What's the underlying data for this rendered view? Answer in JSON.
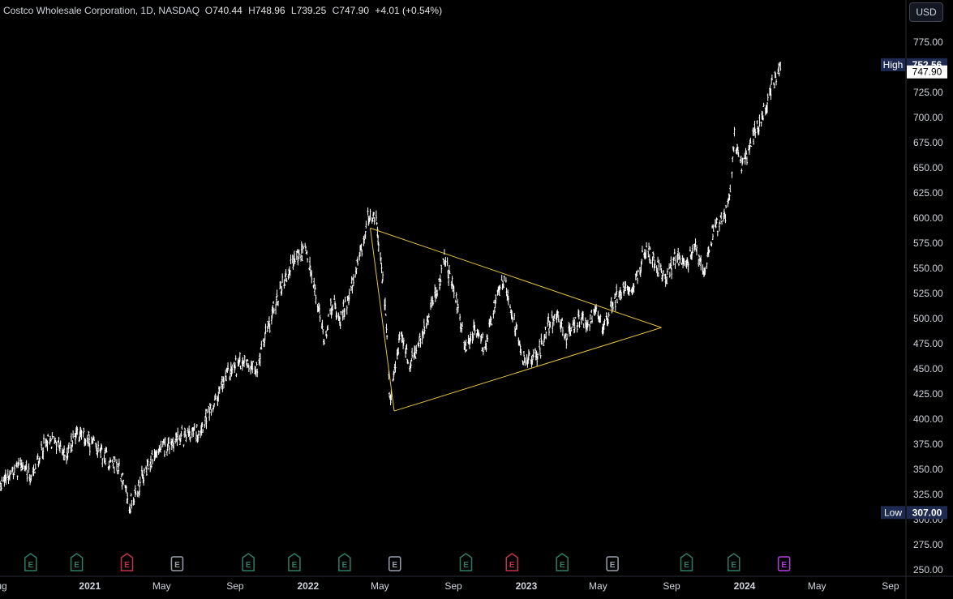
{
  "legend": {
    "symbol": "Costco Wholesale Corporation, 1D, NASDAQ",
    "open_label": "O",
    "open": "740.44",
    "high_label": "H",
    "high": "748.96",
    "low_label": "L",
    "low": "739.25",
    "close_label": "C",
    "close": "747.90",
    "change": "+4.01 (+0.54%)"
  },
  "currency": "USD",
  "colors": {
    "background": "#000000",
    "candles": "#ffffff",
    "triangle": "#e3c440",
    "tag_bg": "#1e2a4f",
    "last_price_bg": "#ffffff",
    "earnings_green": "#2e7d6b",
    "earnings_red": "#c2334a",
    "earnings_gray": "#9aa0ad",
    "earnings_purple": "#b43de0"
  },
  "chart_data": {
    "type": "candlestick",
    "ylim": [
      250,
      775
    ],
    "y_ticks": [
      "775.00",
      "750.00",
      "725.00",
      "700.00",
      "675.00",
      "650.00",
      "625.00",
      "600.00",
      "575.00",
      "550.00",
      "525.00",
      "500.00",
      "475.00",
      "450.00",
      "425.00",
      "400.00",
      "375.00",
      "350.00",
      "325.00",
      "300.00",
      "275.00",
      "250.00"
    ],
    "x_ticks": [
      {
        "label": "Aug",
        "date": "2020-08-01",
        "bold": false
      },
      {
        "label": "2021",
        "date": "2021-01-01",
        "bold": true
      },
      {
        "label": "May",
        "date": "2021-05-01",
        "bold": false
      },
      {
        "label": "Sep",
        "date": "2021-09-01",
        "bold": false
      },
      {
        "label": "2022",
        "date": "2022-01-01",
        "bold": true
      },
      {
        "label": "May",
        "date": "2022-05-01",
        "bold": false
      },
      {
        "label": "Sep",
        "date": "2022-09-01",
        "bold": false
      },
      {
        "label": "2023",
        "date": "2023-01-01",
        "bold": true
      },
      {
        "label": "May",
        "date": "2023-05-01",
        "bold": false
      },
      {
        "label": "Sep",
        "date": "2023-09-01",
        "bold": false
      },
      {
        "label": "2024",
        "date": "2024-01-01",
        "bold": true
      },
      {
        "label": "May",
        "date": "2024-05-01",
        "bold": false
      },
      {
        "label": "Sep",
        "date": "2024-09-01",
        "bold": false
      }
    ],
    "price_path": [
      [
        "2020-07-20",
        325
      ],
      [
        "2020-08-20",
        345
      ],
      [
        "2020-09-10",
        355
      ],
      [
        "2020-09-25",
        340
      ],
      [
        "2020-10-15",
        372
      ],
      [
        "2020-11-05",
        380
      ],
      [
        "2020-11-20",
        362
      ],
      [
        "2020-12-10",
        388
      ],
      [
        "2020-12-30",
        378
      ],
      [
        "2021-01-25",
        362
      ],
      [
        "2021-02-20",
        352
      ],
      [
        "2021-03-08",
        312
      ],
      [
        "2021-03-25",
        335
      ],
      [
        "2021-04-20",
        365
      ],
      [
        "2021-05-25",
        380
      ],
      [
        "2021-06-30",
        388
      ],
      [
        "2021-07-20",
        405
      ],
      [
        "2021-08-20",
        445
      ],
      [
        "2021-09-15",
        460
      ],
      [
        "2021-10-08",
        450
      ],
      [
        "2021-10-25",
        490
      ],
      [
        "2021-11-20",
        535
      ],
      [
        "2021-12-10",
        560
      ],
      [
        "2021-12-28",
        568
      ],
      [
        "2022-01-15",
        520
      ],
      [
        "2022-01-28",
        480
      ],
      [
        "2022-02-10",
        515
      ],
      [
        "2022-02-25",
        500
      ],
      [
        "2022-03-20",
        540
      ],
      [
        "2022-04-05",
        578
      ],
      [
        "2022-04-12",
        605
      ],
      [
        "2022-04-25",
        595
      ],
      [
        "2022-05-10",
        515
      ],
      [
        "2022-05-18",
        415
      ],
      [
        "2022-06-05",
        485
      ],
      [
        "2022-06-20",
        455
      ],
      [
        "2022-07-10",
        480
      ],
      [
        "2022-08-05",
        530
      ],
      [
        "2022-08-18",
        558
      ],
      [
        "2022-09-05",
        520
      ],
      [
        "2022-09-22",
        470
      ],
      [
        "2022-10-05",
        490
      ],
      [
        "2022-10-25",
        470
      ],
      [
        "2022-11-10",
        515
      ],
      [
        "2022-11-25",
        540
      ],
      [
        "2022-12-10",
        500
      ],
      [
        "2022-12-25",
        460
      ],
      [
        "2023-01-10",
        460
      ],
      [
        "2023-01-25",
        470
      ],
      [
        "2023-02-05",
        490
      ],
      [
        "2023-02-20",
        505
      ],
      [
        "2023-03-10",
        480
      ],
      [
        "2023-03-25",
        498
      ],
      [
        "2023-04-15",
        495
      ],
      [
        "2023-04-28",
        505
      ],
      [
        "2023-05-10",
        490
      ],
      [
        "2023-05-25",
        515
      ],
      [
        "2023-06-10",
        530
      ],
      [
        "2023-06-30",
        535
      ],
      [
        "2023-07-20",
        568
      ],
      [
        "2023-08-05",
        555
      ],
      [
        "2023-08-25",
        540
      ],
      [
        "2023-09-10",
        565
      ],
      [
        "2023-09-25",
        550
      ],
      [
        "2023-10-10",
        570
      ],
      [
        "2023-10-25",
        548
      ],
      [
        "2023-11-10",
        590
      ],
      [
        "2023-11-28",
        600
      ],
      [
        "2023-12-08",
        625
      ],
      [
        "2023-12-15",
        680
      ],
      [
        "2023-12-28",
        650
      ],
      [
        "2024-01-15",
        680
      ],
      [
        "2024-01-30",
        700
      ],
      [
        "2024-02-15",
        730
      ],
      [
        "2024-03-01",
        748
      ]
    ],
    "triangle": {
      "upper": [
        [
          "2022-04-15",
          590
        ],
        [
          "2023-08-15",
          491
        ]
      ],
      "lower": [
        [
          "2022-05-25",
          408
        ],
        [
          "2023-08-15",
          491
        ]
      ]
    },
    "high": {
      "label": "High",
      "value": "752.56"
    },
    "low": {
      "label": "Low",
      "value": "307.00"
    },
    "last_price": "747.90",
    "earnings": [
      {
        "date": "2020-09-24",
        "color": "green"
      },
      {
        "date": "2020-12-10",
        "color": "green"
      },
      {
        "date": "2021-03-04",
        "color": "red"
      },
      {
        "date": "2021-05-27",
        "color": "gray"
      },
      {
        "date": "2021-09-23",
        "color": "green"
      },
      {
        "date": "2021-12-09",
        "color": "green"
      },
      {
        "date": "2022-03-03",
        "color": "green"
      },
      {
        "date": "2022-05-26",
        "color": "gray"
      },
      {
        "date": "2022-09-22",
        "color": "green"
      },
      {
        "date": "2022-12-08",
        "color": "red"
      },
      {
        "date": "2023-03-02",
        "color": "green"
      },
      {
        "date": "2023-05-25",
        "color": "gray"
      },
      {
        "date": "2023-09-26",
        "color": "green"
      },
      {
        "date": "2023-12-14",
        "color": "green"
      },
      {
        "date": "2024-03-07",
        "color": "purple"
      }
    ],
    "earnings_letter": "E"
  }
}
